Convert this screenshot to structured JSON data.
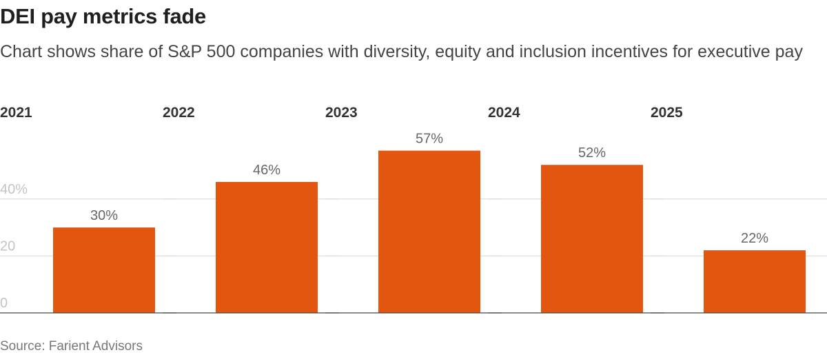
{
  "chart_data": {
    "type": "bar",
    "title": "DEI pay metrics fade",
    "subtitle": "Chart shows share of S&P 500 companies with diversity, equity and inclusion incentives for executive pay",
    "categories": [
      "2021",
      "2022",
      "2023",
      "2024",
      "2025"
    ],
    "values": [
      30,
      46,
      57,
      52,
      22
    ],
    "value_labels": [
      "30%",
      "46%",
      "57%",
      "52%",
      "22%"
    ],
    "yticks": [
      0,
      20,
      40
    ],
    "ytick_labels": [
      "0",
      "20",
      "40%"
    ],
    "ylim": [
      0,
      60
    ],
    "ylabel": "",
    "xlabel": "",
    "grid": true,
    "bar_color": "#e2560f",
    "source": "Source: Farient Advisors"
  }
}
